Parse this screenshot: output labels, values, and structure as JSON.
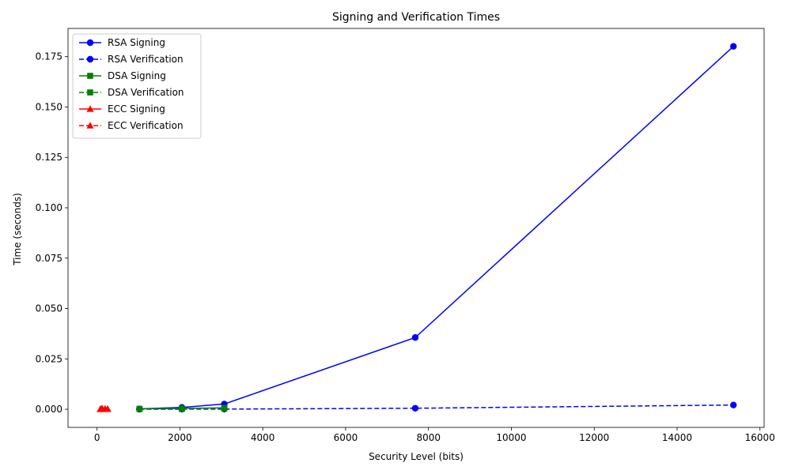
{
  "chart_data": {
    "type": "line",
    "title": "Signing and Verification Times",
    "xlabel": "Security Level (bits)",
    "ylabel": "Time (seconds)",
    "xlim": [
      -700,
      16100
    ],
    "ylim": [
      -0.009,
      0.189
    ],
    "xticks": [
      0,
      2000,
      4000,
      6000,
      8000,
      10000,
      12000,
      14000,
      16000
    ],
    "yticks": [
      0.0,
      0.025,
      0.05,
      0.075,
      0.1,
      0.125,
      0.15,
      0.175
    ],
    "xtick_labels": [
      "0",
      "2000",
      "4000",
      "6000",
      "8000",
      "10000",
      "12000",
      "14000",
      "16000"
    ],
    "ytick_labels": [
      "0.000",
      "0.025",
      "0.050",
      "0.075",
      "0.100",
      "0.125",
      "0.150",
      "0.175"
    ],
    "grid": false,
    "legend_position": "top-left",
    "series": [
      {
        "name": "RSA Signing",
        "color": "#0000ff",
        "linestyle": "solid",
        "marker": "circle",
        "x": [
          1024,
          2048,
          3072,
          7680,
          15360
        ],
        "y": [
          0.0002,
          0.0009,
          0.0026,
          0.0356,
          0.1801
        ]
      },
      {
        "name": "RSA Verification",
        "color": "#0000ff",
        "linestyle": "dashed",
        "marker": "circle",
        "x": [
          1024,
          2048,
          3072,
          7680,
          15360
        ],
        "y": [
          2e-05,
          4e-05,
          8e-05,
          0.0005,
          0.0021
        ]
      },
      {
        "name": "DSA Signing",
        "color": "#008000",
        "linestyle": "solid",
        "marker": "square",
        "x": [
          1024,
          2048,
          3072
        ],
        "y": [
          0.0002,
          0.0004,
          0.0007
        ]
      },
      {
        "name": "DSA Verification",
        "color": "#008000",
        "linestyle": "dashed",
        "marker": "square",
        "x": [
          1024,
          2048,
          3072
        ],
        "y": [
          0.0001,
          0.0002,
          0.0004
        ]
      },
      {
        "name": "ECC Signing",
        "color": "#ff0000",
        "linestyle": "solid",
        "marker": "triangle",
        "x": [
          80,
          112,
          128,
          192,
          256
        ],
        "y": [
          0.0001,
          0.0004,
          0.0002,
          0.0003,
          0.0002
        ]
      },
      {
        "name": "ECC Verification",
        "color": "#ff0000",
        "linestyle": "dashed",
        "marker": "triangle",
        "x": [
          80,
          112,
          128,
          192,
          256
        ],
        "y": [
          5e-05,
          0.0001,
          8e-05,
          0.0001,
          0.0001
        ]
      }
    ]
  }
}
